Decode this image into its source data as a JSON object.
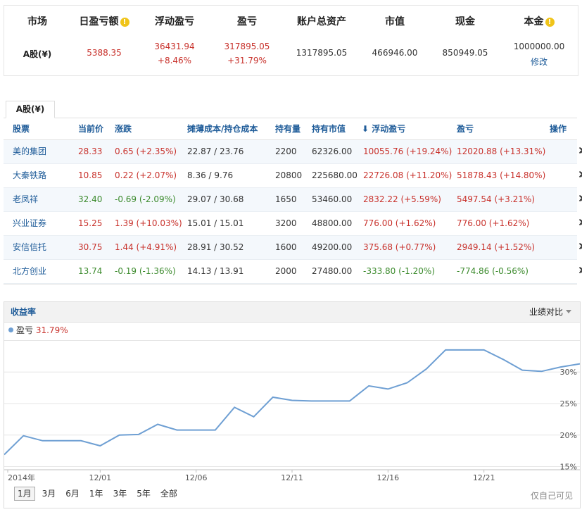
{
  "summary": {
    "headers": [
      "市场",
      "日盈亏额",
      "浮动盈亏",
      "盈亏",
      "账户总资产",
      "市值",
      "现金",
      "本金"
    ],
    "market": "A股(¥)",
    "daily_pnl": "5388.35",
    "floating_pnl": "36431.94",
    "floating_pct": "+8.46%",
    "pnl": "317895.05",
    "pnl_pct": "+31.79%",
    "total_assets": "1317895.05",
    "market_value": "466946.00",
    "cash": "850949.05",
    "principal": "1000000.00",
    "edit_label": "修改",
    "info_glyph": "!"
  },
  "holdings": {
    "tab_label": "A股(¥)",
    "headers": [
      "股票",
      "当前价",
      "涨跌",
      "摊薄成本/持仓成本",
      "持有量",
      "持有市值",
      "浮动盈亏",
      "盈亏",
      "操作"
    ],
    "sort_arrow": "⬇",
    "rows": [
      {
        "name": "美的集团",
        "price": "28.33",
        "change": "0.65 (+2.35%)",
        "cost": "22.87 / 23.76",
        "qty": "2200",
        "value": "62326.00",
        "float": "10055.76 (+19.24%)",
        "pnl": "12020.88 (+13.31%)",
        "dir": "up",
        "fdir": "up",
        "pdir": "up"
      },
      {
        "name": "大秦铁路",
        "price": "10.85",
        "change": "0.22 (+2.07%)",
        "cost": "8.36 / 9.76",
        "qty": "20800",
        "value": "225680.00",
        "float": "22726.08 (+11.20%)",
        "pnl": "51878.43 (+14.80%)",
        "dir": "up",
        "fdir": "up",
        "pdir": "up"
      },
      {
        "name": "老凤祥",
        "price": "32.40",
        "change": "-0.69 (-2.09%)",
        "cost": "29.07 / 30.68",
        "qty": "1650",
        "value": "53460.00",
        "float": "2832.22 (+5.59%)",
        "pnl": "5497.54 (+3.21%)",
        "dir": "down",
        "fdir": "up",
        "pdir": "up"
      },
      {
        "name": "兴业证券",
        "price": "15.25",
        "change": "1.39 (+10.03%)",
        "cost": "15.01 / 15.01",
        "qty": "3200",
        "value": "48800.00",
        "float": "776.00 (+1.62%)",
        "pnl": "776.00 (+1.62%)",
        "dir": "up",
        "fdir": "up",
        "pdir": "up"
      },
      {
        "name": "安信信托",
        "price": "30.75",
        "change": "1.44 (+4.91%)",
        "cost": "28.91 / 30.52",
        "qty": "1600",
        "value": "49200.00",
        "float": "375.68 (+0.77%)",
        "pnl": "2949.14 (+1.52%)",
        "dir": "up",
        "fdir": "up",
        "pdir": "up"
      },
      {
        "name": "北方创业",
        "price": "13.74",
        "change": "-0.19 (-1.36%)",
        "cost": "14.13 / 13.91",
        "qty": "2000",
        "value": "27480.00",
        "float": "-333.80 (-1.20%)",
        "pnl": "-774.86 (-0.56%)",
        "dir": "down",
        "fdir": "down",
        "pdir": "down"
      }
    ],
    "op_icons": [
      "transfer-icon",
      "close-icon"
    ]
  },
  "chart_panel": {
    "title": "收益率",
    "compare_label": "业绩对比",
    "legend_label": "盈亏",
    "legend_value": "31.79%",
    "ranges": [
      "1月",
      "3月",
      "6月",
      "1年",
      "3年",
      "5年",
      "全部"
    ],
    "active_range": "1月",
    "private_note": "仅自己可见"
  },
  "chart_data": {
    "type": "line",
    "title": "",
    "series": [
      {
        "name": "盈亏",
        "color": "#6e9fd3",
        "values": [
          16.9,
          19.9,
          19.1,
          19.1,
          19.1,
          18.3,
          20.0,
          20.1,
          21.7,
          20.8,
          20.8,
          20.8,
          24.4,
          22.9,
          26.0,
          25.5,
          25.4,
          25.4,
          25.4,
          27.8,
          27.3,
          28.3,
          30.5,
          33.5,
          33.5,
          33.5,
          32.0,
          30.3,
          30.1,
          30.8,
          31.3
        ]
      }
    ],
    "x_tick_labels": [
      "2014年",
      "12/01",
      "12/06",
      "12/11",
      "12/16",
      "12/21"
    ],
    "y_tick_labels": [
      "15%",
      "20%",
      "25%",
      "30%"
    ],
    "y_ticks": [
      15,
      20,
      25,
      30
    ],
    "ylim": [
      14.5,
      35.5
    ],
    "line_color": "#6e9fd3",
    "grid": true,
    "legend_position": "top-left"
  }
}
